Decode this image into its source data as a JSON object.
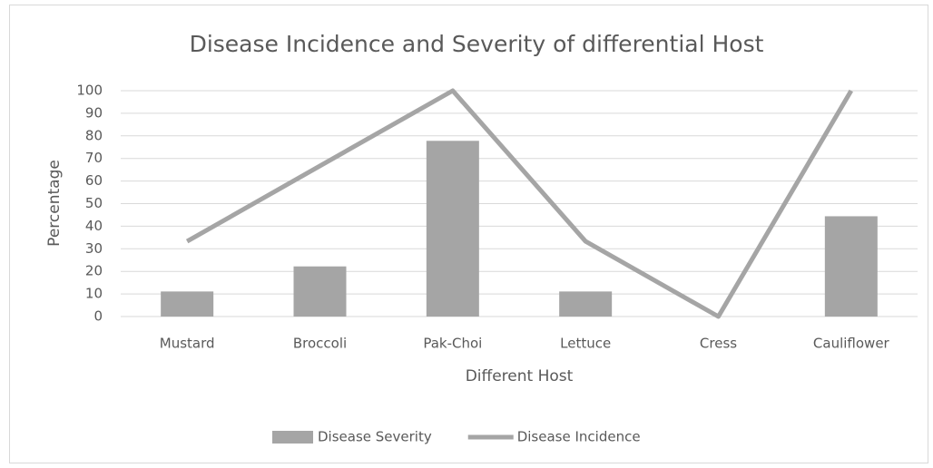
{
  "chart_data": {
    "type": "bar",
    "title": "Disease Incidence and Severity of differential Host",
    "x_label": "Different Host",
    "y_label": "Percentage",
    "categories": [
      "Mustard",
      "Broccoli",
      "Pak-Choi",
      "Lettuce",
      "Cress",
      "Cauliflower"
    ],
    "series": [
      {
        "name": "Disease Severity",
        "type": "bar",
        "color": "#a5a5a5",
        "values": [
          11.1,
          22.2,
          77.8,
          11.1,
          0,
          44.4
        ]
      },
      {
        "name": "Disease Incidence",
        "type": "line",
        "color": "#a5a5a5",
        "values": [
          33.3,
          66.7,
          100,
          33.3,
          0,
          100
        ]
      }
    ],
    "ylim": [
      0,
      100
    ],
    "yticks": [
      0,
      10,
      20,
      30,
      40,
      50,
      60,
      70,
      80,
      90,
      100
    ],
    "grid": true,
    "legend": "bottom"
  }
}
